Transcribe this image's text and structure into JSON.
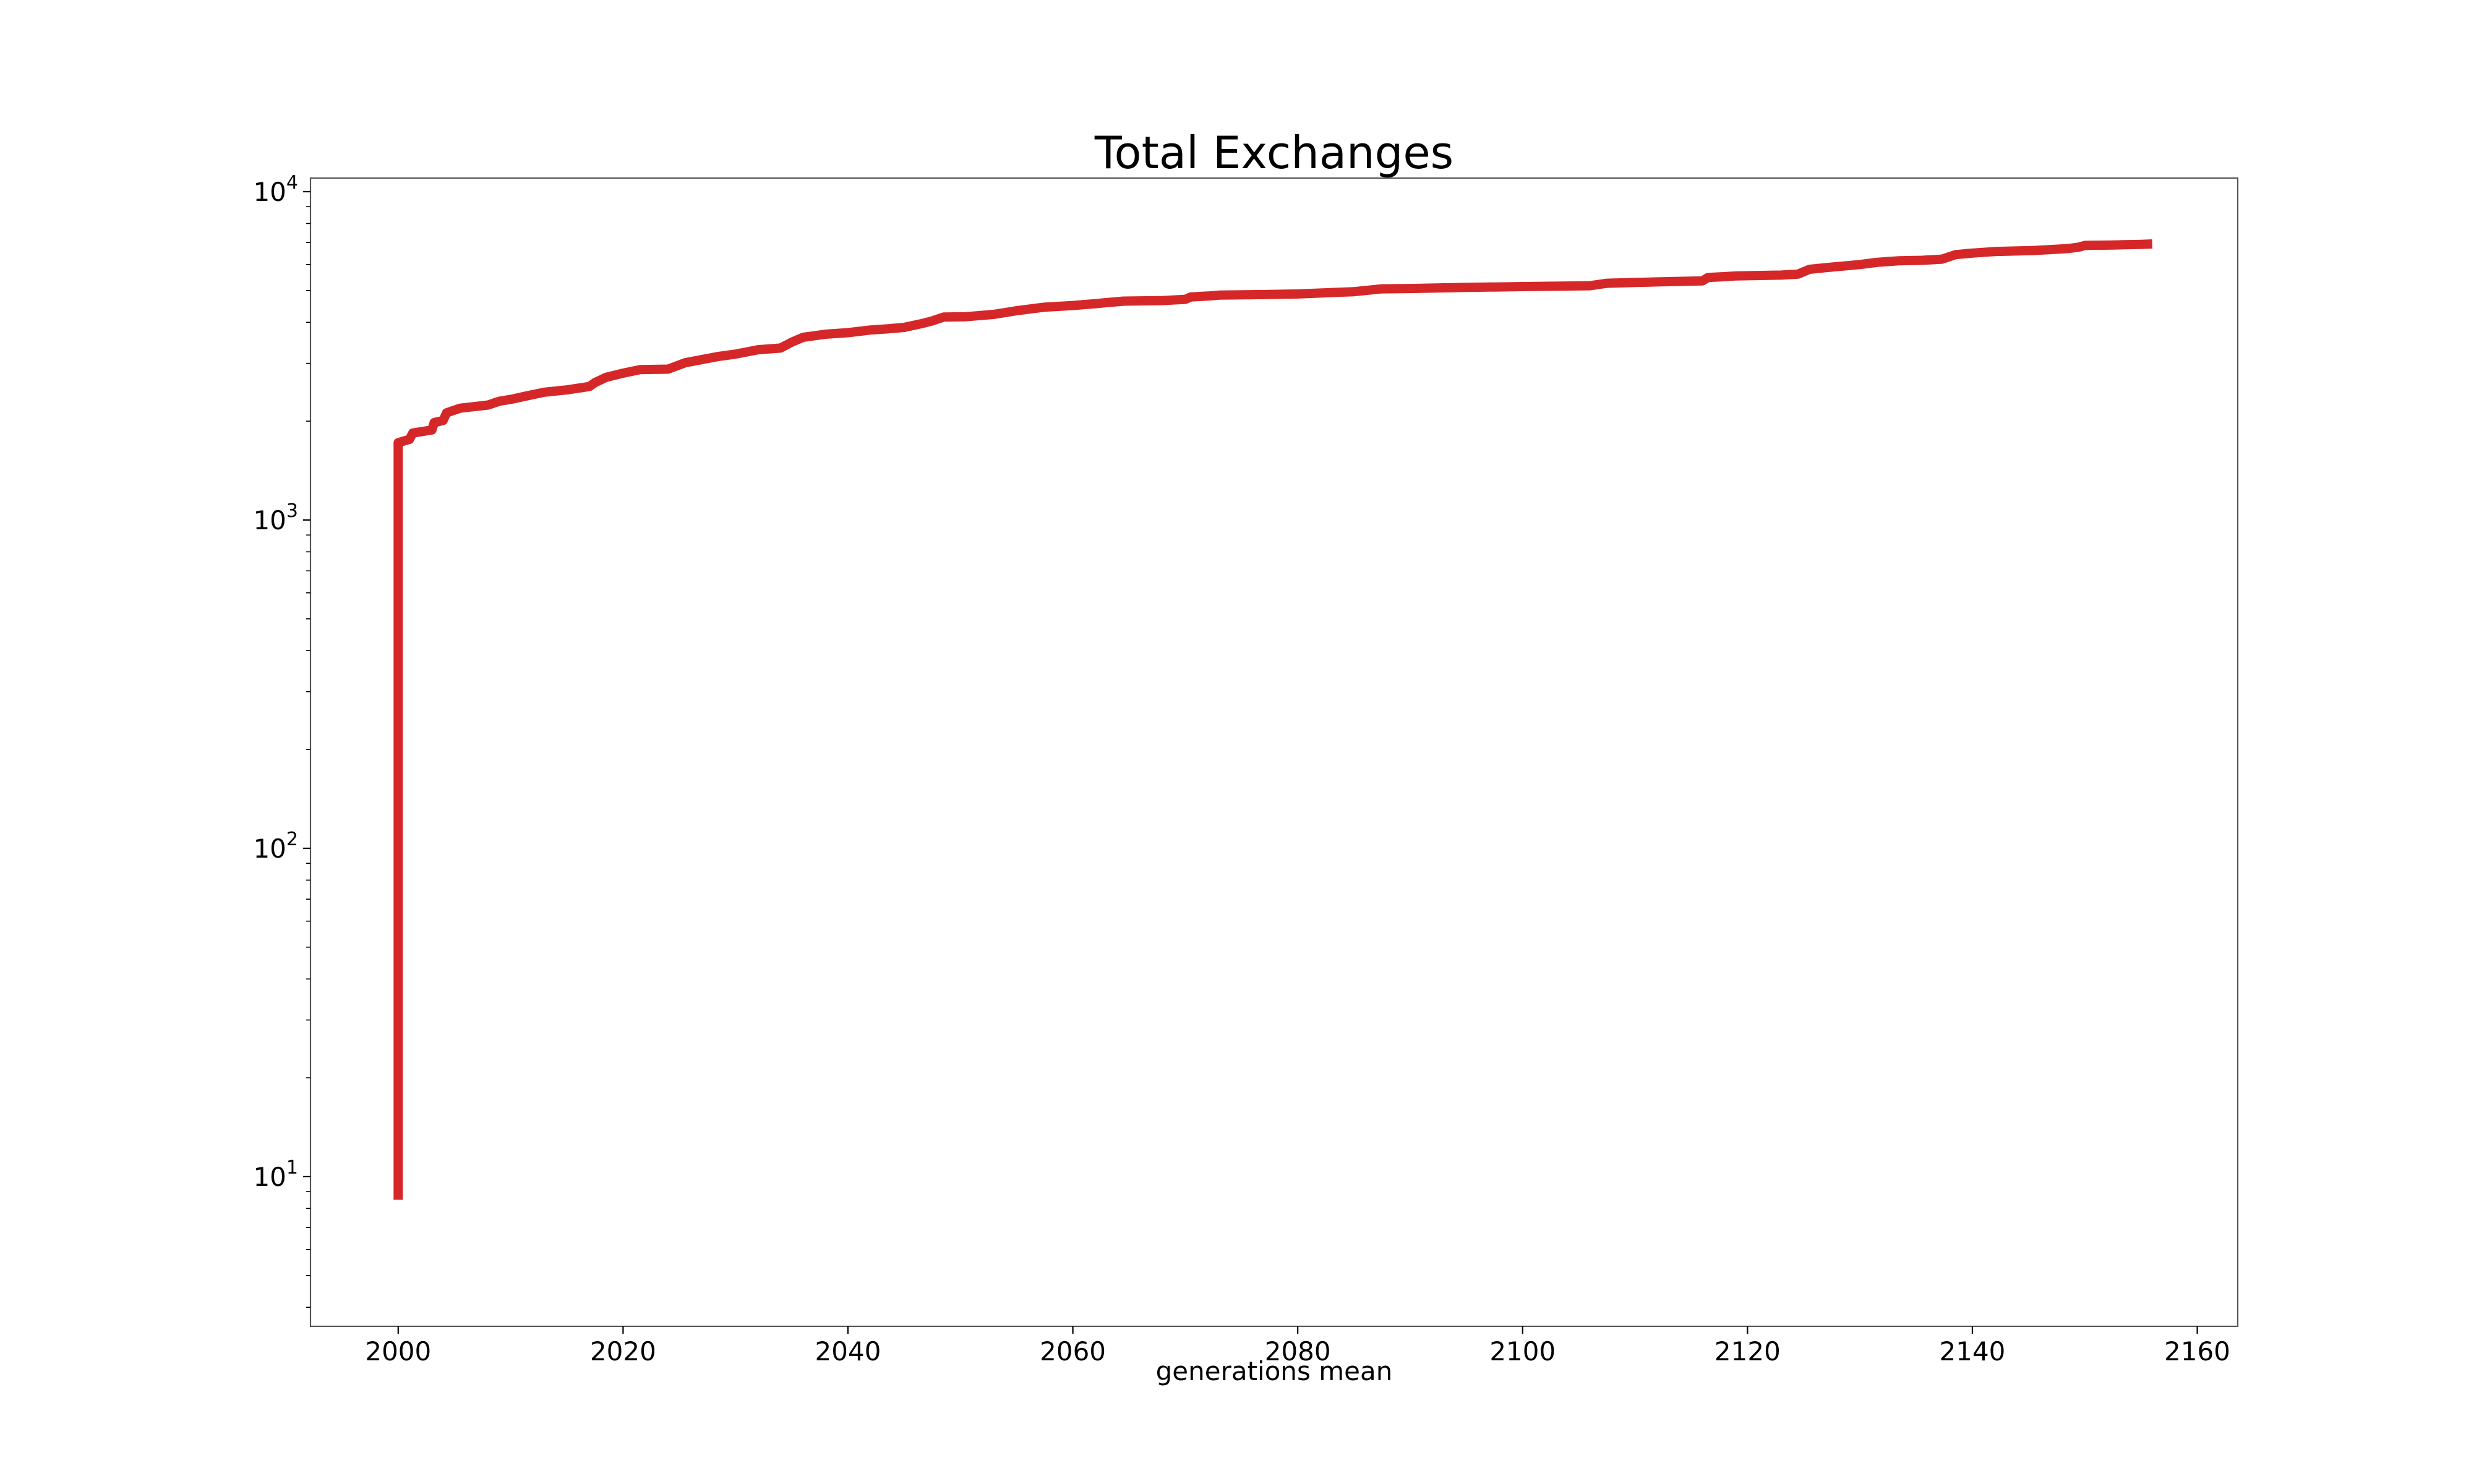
{
  "chart_data": {
    "type": "line",
    "title": "Total Exchanges",
    "xlabel": "generations mean",
    "ylabel": "",
    "yscale": "log",
    "xlim": [
      1992.2,
      2163.6
    ],
    "ylim": [
      3.5,
      11000
    ],
    "grid": false,
    "legend": "none",
    "xticks": [
      {
        "value": 2000,
        "label": "2000"
      },
      {
        "value": 2020,
        "label": "2020"
      },
      {
        "value": 2040,
        "label": "2040"
      },
      {
        "value": 2060,
        "label": "2060"
      },
      {
        "value": 2080,
        "label": "2080"
      },
      {
        "value": 2100,
        "label": "2100"
      },
      {
        "value": 2120,
        "label": "2120"
      },
      {
        "value": 2140,
        "label": "2140"
      },
      {
        "value": 2160,
        "label": "2160"
      }
    ],
    "yticks": [
      {
        "value": 10,
        "base": "10",
        "exp": "1"
      },
      {
        "value": 100,
        "base": "10",
        "exp": "2"
      },
      {
        "value": 1000,
        "base": "10",
        "exp": "3"
      },
      {
        "value": 10000,
        "base": "10",
        "exp": "4"
      }
    ],
    "series": [
      {
        "color": "#d62728",
        "x": [
          2000,
          2000,
          2001,
          2001.3,
          2003,
          2003.2,
          2004,
          2004.3,
          2005.5,
          2008,
          2009,
          2010,
          2011.5,
          2013,
          2015,
          2017,
          2017.5,
          2018.5,
          2020,
          2021.5,
          2024,
          2025.5,
          2027,
          2028.5,
          2030,
          2032,
          2034,
          2035,
          2036,
          2038,
          2040,
          2042,
          2043.5,
          2045,
          2046.5,
          2047.5,
          2048.5,
          2050.5,
          2053,
          2055,
          2057.5,
          2060,
          2062,
          2064.5,
          2068,
          2070,
          2070.5,
          2072,
          2073,
          2077,
          2080,
          2085,
          2087.5,
          2090,
          2095,
          2100,
          2106,
          2107.5,
          2110,
          2112,
          2116,
          2116.5,
          2118,
          2119,
          2123,
          2124.5,
          2125.5,
          2127,
          2130,
          2131.5,
          2133.5,
          2135.5,
          2137.3,
          2138.5,
          2140,
          2142,
          2145.5,
          2148.5,
          2149.5,
          2150,
          2152.5,
          2155,
          2156
        ],
        "y": [
          8.5,
          1720,
          1760,
          1840,
          1880,
          1980,
          2010,
          2120,
          2190,
          2240,
          2300,
          2330,
          2390,
          2450,
          2490,
          2550,
          2620,
          2720,
          2800,
          2870,
          2880,
          3010,
          3080,
          3150,
          3200,
          3300,
          3340,
          3480,
          3600,
          3680,
          3720,
          3790,
          3820,
          3860,
          3960,
          4040,
          4150,
          4160,
          4230,
          4340,
          4450,
          4500,
          4560,
          4640,
          4660,
          4700,
          4780,
          4810,
          4840,
          4860,
          4880,
          4960,
          5060,
          5070,
          5110,
          5140,
          5170,
          5260,
          5290,
          5310,
          5350,
          5480,
          5510,
          5540,
          5570,
          5610,
          5800,
          5870,
          6000,
          6090,
          6160,
          6180,
          6230,
          6430,
          6500,
          6570,
          6620,
          6710,
          6780,
          6860,
          6880,
          6910,
          6930
        ]
      }
    ]
  }
}
